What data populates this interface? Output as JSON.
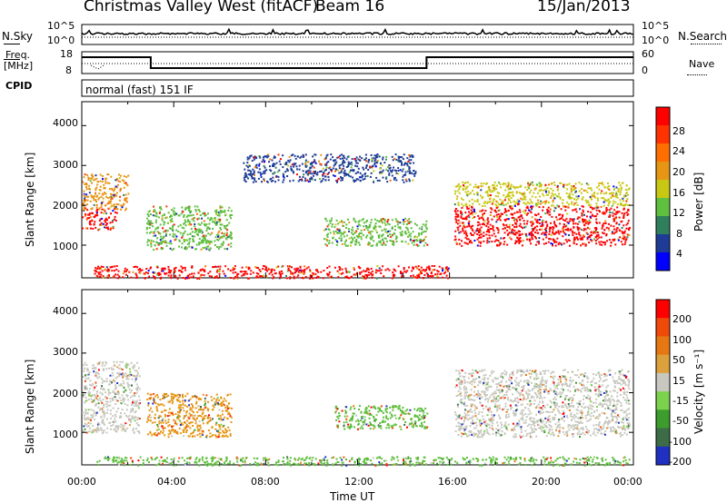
{
  "header": {
    "station": "Christmas Valley West (fitACF)",
    "beam": "Beam 16",
    "date": "15/Jan/2013"
  },
  "noise_panel": {
    "left_label": "N.Sky",
    "right_label": "N.Search",
    "left_ticks": [
      "10^5",
      "10^0"
    ],
    "right_ticks": [
      "10^5",
      "10^0"
    ]
  },
  "freq_panel": {
    "left_label_1": "Freq.",
    "left_label_2": "[MHz]",
    "right_label": "Nave",
    "left_ticks": [
      "18",
      "8"
    ],
    "right_ticks": [
      "60",
      "0"
    ],
    "cpid_label": "CPID",
    "cpid_value": "normal (fast) 151 IF"
  },
  "colors": {
    "power_scale": [
      "#0000ff",
      "#1e3c96",
      "#2f7f5c",
      "#5fbf3f",
      "#c8c814",
      "#e69614",
      "#ff6e00",
      "#ff3200",
      "#ff0000"
    ],
    "velocity_scale": [
      "#2030c0",
      "#3c6c48",
      "#3c9c2c",
      "#7cd24c",
      "#c8c8c0",
      "#dca03c",
      "#e67814",
      "#f04a0a",
      "#ff0000"
    ]
  },
  "chart_data": [
    {
      "type": "heatmap",
      "panel": "power",
      "xlabel": "",
      "ylabel": "Slant Range [km]",
      "xlim": [
        "00:00",
        "24:00"
      ],
      "ylim": [
        180,
        4600
      ],
      "yticks": [
        "1000",
        "2000",
        "3000",
        "4000"
      ],
      "colorbar_label": "Power [dB]",
      "colorbar_ticks": [
        "28",
        "24",
        "20",
        "16",
        "12",
        "8",
        "4"
      ],
      "regions": [
        {
          "x0": 0.0,
          "x1": 1.5,
          "y0": 1400,
          "y1": 1950,
          "level": "red"
        },
        {
          "x0": 0.0,
          "x1": 2.0,
          "y0": 1900,
          "y1": 2800,
          "level": "orange"
        },
        {
          "x0": 2.8,
          "x1": 6.5,
          "y0": 900,
          "y1": 2000,
          "level": "green"
        },
        {
          "x0": 7.0,
          "x1": 14.5,
          "y0": 2600,
          "y1": 3300,
          "level": "blue"
        },
        {
          "x0": 10.5,
          "x1": 15.0,
          "y0": 1000,
          "y1": 1700,
          "level": "green"
        },
        {
          "x0": 16.2,
          "x1": 23.8,
          "y0": 1000,
          "y1": 2000,
          "level": "red"
        },
        {
          "x0": 16.2,
          "x1": 23.8,
          "y0": 2000,
          "y1": 2600,
          "level": "yellow"
        },
        {
          "x0": 0.5,
          "x1": 16.0,
          "y0": 180,
          "y1": 500,
          "level": "red"
        }
      ]
    },
    {
      "type": "heatmap",
      "panel": "velocity",
      "xlabel": "Time UT",
      "ylabel": "Slant Range [km]",
      "xlim": [
        "00:00",
        "24:00"
      ],
      "ylim": [
        180,
        4600
      ],
      "yticks": [
        "1000",
        "2000",
        "3000",
        "4000"
      ],
      "xticks": [
        "00:00",
        "04:00",
        "08:00",
        "12:00",
        "16:00",
        "20:00",
        "00:00"
      ],
      "colorbar_label": "Velocity [m s⁻¹]",
      "colorbar_ticks": [
        "200",
        "100",
        "50",
        "15",
        "-15",
        "-50",
        "-100",
        "-200"
      ],
      "regions": [
        {
          "x0": 0.0,
          "x1": 2.5,
          "y0": 1000,
          "y1": 2800,
          "level": "grey"
        },
        {
          "x0": 2.8,
          "x1": 6.5,
          "y0": 900,
          "y1": 2000,
          "level": "orange"
        },
        {
          "x0": 11.0,
          "x1": 15.0,
          "y0": 1100,
          "y1": 1700,
          "level": "green"
        },
        {
          "x0": 16.2,
          "x1": 23.8,
          "y0": 900,
          "y1": 2600,
          "level": "grey"
        },
        {
          "x0": 0.5,
          "x1": 23.8,
          "y0": 180,
          "y1": 400,
          "level": "green"
        }
      ]
    }
  ],
  "xaxis_title": "Time UT"
}
